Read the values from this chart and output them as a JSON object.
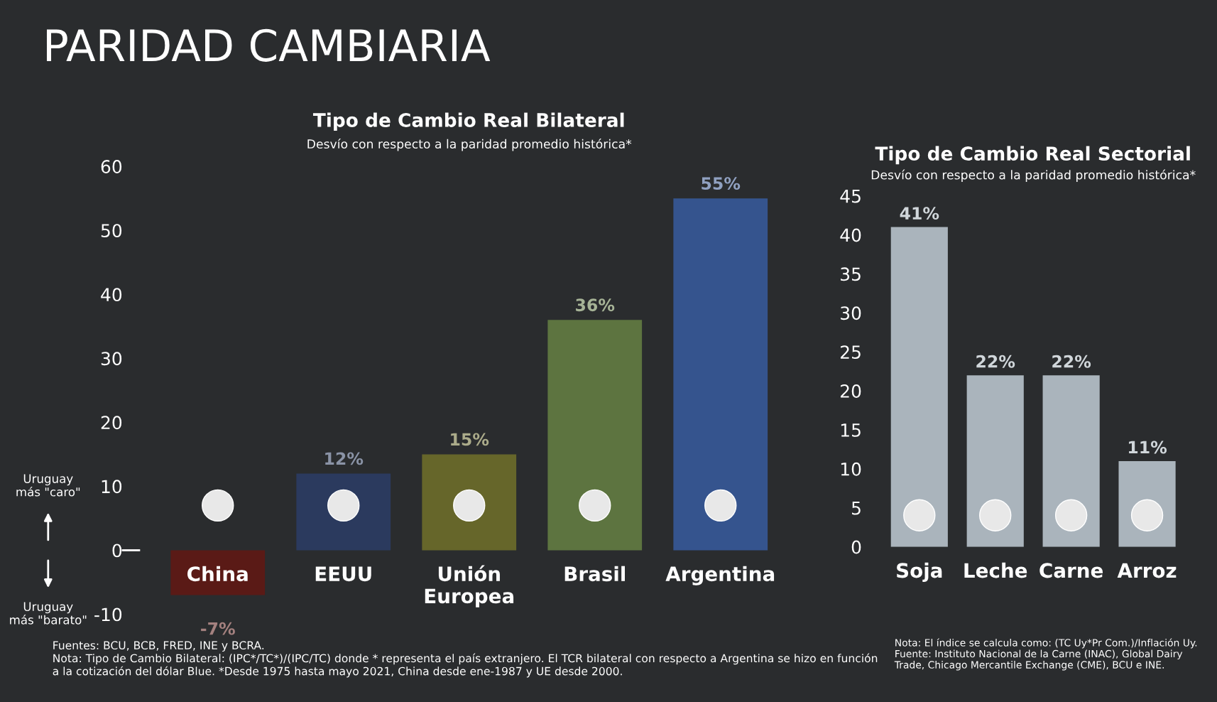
{
  "chart_data": [
    {
      "type": "bar",
      "title": "Tipo de Cambio Real Bilateral",
      "subtitle": "Desvío con respecto a la paridad promedio histórica*",
      "categories": [
        "China",
        "EEUU",
        "Unión\nEuropea",
        "Brasil",
        "Argentina"
      ],
      "values": [
        -7,
        12,
        15,
        36,
        55
      ],
      "colors": [
        "#5a1a16",
        "#2b3a5e",
        "#66662a",
        "#5d7440",
        "#35548e"
      ],
      "value_labels": [
        "-7%",
        "12%",
        "15%",
        "36%",
        "55%"
      ],
      "ylim": [
        -10,
        60
      ],
      "yticks": [
        -10,
        0,
        10,
        20,
        30,
        40,
        50,
        60
      ],
      "grid": false,
      "annotations": [
        "PARIDAD CAMBIARIA",
        "Uruguay\nmás \"caro\"",
        "Uruguay\nmás \"barato\"",
        "Fuentes: BCU, BCB, FRED, INE y BCRA.\nNota: Tipo de Cambio Bilateral: (IPC*/TC*)/(IPC/TC) donde * representa el país extranjero. El TCR bilateral con respecto a Argentina se hizo en función\na la cotización del dólar Blue. *Desde 1975 hasta mayo 2021, China desde ene-1987 y UE desde 2000."
      ]
    },
    {
      "type": "bar",
      "title": "Tipo de Cambio Real Sectorial",
      "subtitle": "Desvío con respecto a la paridad promedio histórica*",
      "categories": [
        "Soja",
        "Leche",
        "Carne",
        "Arroz"
      ],
      "values": [
        41,
        22,
        22,
        11
      ],
      "colors": [
        "#aab4bc",
        "#aab4bc",
        "#aab4bc",
        "#aab4bc"
      ],
      "value_labels": [
        "41%",
        "22%",
        "22%",
        "11%"
      ],
      "ylim": [
        0,
        45
      ],
      "yticks": [
        0,
        5,
        10,
        15,
        20,
        25,
        30,
        35,
        40,
        45
      ],
      "grid": false,
      "annotations": [
        "Nota: El índice se calcula como: (TC Uy*Pr Com.)/Inflación Uy.\nFuente: Instituto Nacional de la Carne (INAC), Global Dairy\nTrade, Chicago Mercantile Exchange (CME), BCU e INE."
      ]
    }
  ]
}
